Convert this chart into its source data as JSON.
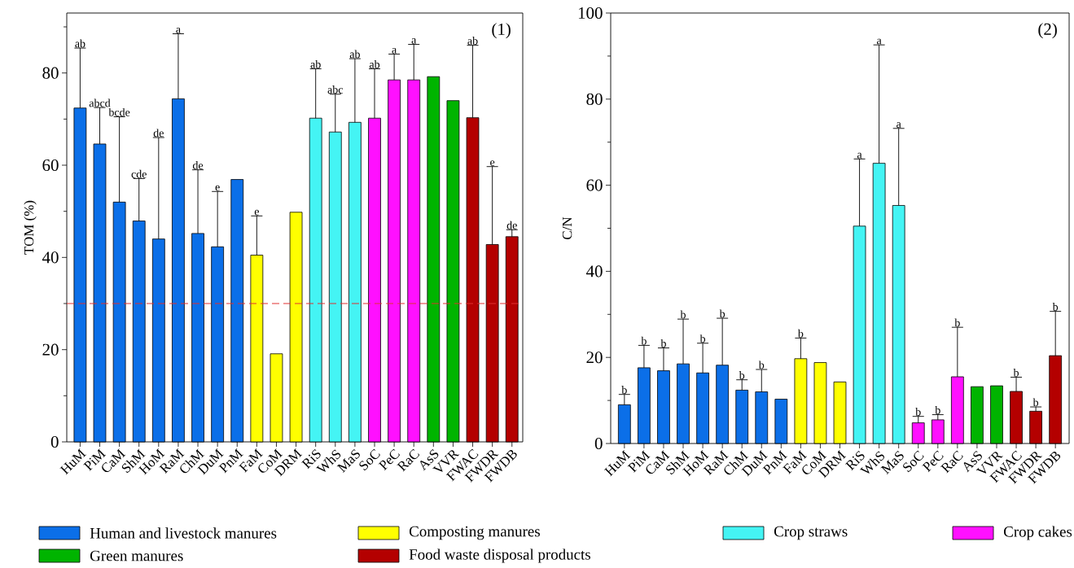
{
  "chart_data": [
    {
      "type": "bar",
      "ylabel": "TOM (%)",
      "categories": [
        "HuM",
        "PiM",
        "CaM",
        "ShM",
        "HoM",
        "RaM",
        "ChM",
        "DuM",
        "PnM",
        "FaM",
        "CoM",
        "DRM",
        "RiS",
        "WhS",
        "MaS",
        "SoC",
        "PeC",
        "RaC",
        "AsS",
        "VVR",
        "FWAC",
        "FWDR",
        "FWDB"
      ],
      "ylim": [
        0,
        93
      ],
      "yticks": [
        0,
        {
          "value": 10,
          "label": null
        },
        20,
        {
          "value": 30,
          "label": null
        },
        40,
        {
          "value": 50,
          "label": null
        },
        60,
        {
          "value": 70,
          "label": null
        },
        80,
        {
          "value": 90,
          "label": null
        }
      ],
      "legend": "bottom",
      "series": [
        {
          "name": "Human and livestock manures",
          "color": "#0b6fe8",
          "values": [
            72.4,
            64.6,
            52.0,
            47.9,
            44.0,
            74.4,
            45.2,
            42.3,
            56.9,
            null,
            null,
            null,
            null,
            null,
            null,
            null,
            null,
            null,
            null,
            null,
            null,
            null,
            null
          ],
          "errors": [
            [
              72.4,
              85.4
            ],
            [
              64.6,
              72.5
            ],
            [
              52.0,
              70.5
            ],
            [
              47.9,
              57.1
            ],
            [
              44.0,
              66.0
            ],
            [
              74.4,
              88.5
            ],
            [
              45.2,
              59.0
            ],
            [
              42.3,
              54.3
            ],
            null,
            null,
            null,
            null,
            null,
            null,
            null,
            null,
            null,
            null,
            null,
            null,
            null,
            null,
            null
          ]
        },
        {
          "name": "Composting manures",
          "color": "#ffff00",
          "values": [
            null,
            null,
            null,
            null,
            null,
            null,
            null,
            null,
            null,
            40.5,
            19.1,
            49.8,
            null,
            null,
            null,
            null,
            null,
            null,
            null,
            null,
            null,
            null,
            null
          ],
          "errors": [
            null,
            null,
            null,
            null,
            null,
            null,
            null,
            null,
            null,
            [
              40.5,
              49.0
            ],
            null,
            null,
            null,
            null,
            null,
            null,
            null,
            null,
            null,
            null,
            null,
            null,
            null
          ]
        },
        {
          "name": "Crop straws",
          "color": "#44f4f4",
          "values": [
            null,
            null,
            null,
            null,
            null,
            null,
            null,
            null,
            null,
            null,
            null,
            null,
            70.2,
            67.2,
            69.3,
            null,
            null,
            null,
            null,
            null,
            null,
            null,
            null
          ],
          "errors": [
            null,
            null,
            null,
            null,
            null,
            null,
            null,
            null,
            null,
            null,
            null,
            null,
            [
              70.2,
              80.9
            ],
            [
              67.2,
              75.4
            ],
            [
              69.3,
              83.1
            ],
            null,
            null,
            null,
            null,
            null,
            null,
            null,
            null
          ]
        },
        {
          "name": "Crop cakes",
          "color": "#ff10ff",
          "values": [
            null,
            null,
            null,
            null,
            null,
            null,
            null,
            null,
            null,
            null,
            null,
            null,
            null,
            null,
            null,
            70.2,
            78.5,
            78.5,
            null,
            null,
            null,
            null,
            null
          ],
          "errors": [
            null,
            null,
            null,
            null,
            null,
            null,
            null,
            null,
            null,
            null,
            null,
            null,
            null,
            null,
            null,
            [
              70.2,
              80.9
            ],
            [
              78.5,
              84.1
            ],
            [
              78.5,
              86.2
            ],
            null,
            null,
            null,
            null,
            null
          ]
        },
        {
          "name": "Green manures",
          "color": "#00b400",
          "values": [
            null,
            null,
            null,
            null,
            null,
            null,
            null,
            null,
            null,
            null,
            null,
            null,
            null,
            null,
            null,
            null,
            null,
            null,
            79.2,
            74.0,
            null,
            null,
            null
          ]
        },
        {
          "name": "Food waste disposal products",
          "color": "#b40000",
          "values": [
            null,
            null,
            null,
            null,
            null,
            null,
            null,
            null,
            null,
            null,
            null,
            null,
            null,
            null,
            null,
            null,
            null,
            null,
            null,
            null,
            70.3,
            42.8,
            44.5
          ],
          "errors": [
            null,
            null,
            null,
            null,
            null,
            null,
            null,
            null,
            null,
            null,
            null,
            null,
            null,
            null,
            null,
            null,
            null,
            null,
            null,
            null,
            [
              70.3,
              86.0
            ],
            [
              42.8,
              59.7
            ],
            [
              44.5,
              46.0
            ]
          ]
        }
      ],
      "ref_lines": [
        {
          "axis": "y",
          "value": 30,
          "color": "#e03030",
          "line_style": "dashed"
        }
      ],
      "annotations": [
        "(1)",
        {
          "text": "ab",
          "x": "HuM",
          "y": 85.4
        },
        {
          "text": "abcd",
          "x": "PiM",
          "y": 72.5
        },
        {
          "text": "bcde",
          "x": "CaM",
          "y": 70.5
        },
        {
          "text": "cde",
          "x": "ShM",
          "y": 57.1
        },
        {
          "text": "de",
          "x": "HoM",
          "y": 66.0
        },
        {
          "text": "a",
          "x": "RaM",
          "y": 88.5
        },
        {
          "text": "de",
          "x": "ChM",
          "y": 59.0
        },
        {
          "text": "e",
          "x": "DuM",
          "y": 54.3
        },
        {
          "text": "e",
          "x": "FaM",
          "y": 49.0
        },
        {
          "text": "ab",
          "x": "RiS",
          "y": 80.9
        },
        {
          "text": "abc",
          "x": "WhS",
          "y": 75.4
        },
        {
          "text": "ab",
          "x": "MaS",
          "y": 83.1
        },
        {
          "text": "ab",
          "x": "SoC",
          "y": 80.9
        },
        {
          "text": "a",
          "x": "PeC",
          "y": 84.1
        },
        {
          "text": "a",
          "x": "RaC",
          "y": 86.2
        },
        {
          "text": "ab",
          "x": "FWAC",
          "y": 86.0
        },
        {
          "text": "e",
          "x": "FWDR",
          "y": 59.7
        },
        {
          "text": "de",
          "x": "FWDB",
          "y": 46.0
        }
      ]
    },
    {
      "type": "bar",
      "ylabel": "C/N",
      "categories": [
        "HuM",
        "PiM",
        "CaM",
        "ShM",
        "HoM",
        "RaM",
        "ChM",
        "DuM",
        "PnM",
        "FaM",
        "CoM",
        "DRM",
        "RiS",
        "WhS",
        "MaS",
        "SoC",
        "PeC",
        "RaC",
        "AsS",
        "VVR",
        "FWAC",
        "FWDR",
        "FWDB"
      ],
      "ylim": [
        0,
        100
      ],
      "yticks": [
        0,
        {
          "value": 10,
          "label": null
        },
        20,
        {
          "value": 30,
          "label": null
        },
        40,
        {
          "value": 50,
          "label": null
        },
        60,
        {
          "value": 70,
          "label": null
        },
        80,
        {
          "value": 90,
          "label": null
        },
        100
      ],
      "series": [
        {
          "color": "#0b6fe8",
          "values": [
            9.0,
            17.6,
            16.9,
            18.5,
            16.4,
            18.2,
            12.4,
            12.0,
            10.3,
            null,
            null,
            null,
            null,
            null,
            null,
            null,
            null,
            null,
            null,
            null,
            null,
            null,
            null
          ],
          "errors": [
            [
              9.0,
              11.4
            ],
            [
              17.6,
              22.8
            ],
            [
              16.9,
              22.2
            ],
            [
              18.5,
              28.9
            ],
            [
              16.4,
              23.3
            ],
            [
              18.2,
              29.1
            ],
            [
              12.4,
              14.8
            ],
            [
              12.0,
              17.2
            ],
            null,
            null,
            null,
            null,
            null,
            null,
            null,
            null,
            null,
            null,
            null,
            null,
            null,
            null,
            null
          ]
        },
        {
          "color": "#ffff00",
          "values": [
            null,
            null,
            null,
            null,
            null,
            null,
            null,
            null,
            null,
            19.7,
            18.8,
            14.3,
            null,
            null,
            null,
            null,
            null,
            null,
            null,
            null,
            null,
            null,
            null
          ],
          "errors": [
            null,
            null,
            null,
            null,
            null,
            null,
            null,
            null,
            null,
            [
              19.7,
              24.5
            ],
            null,
            null,
            null,
            null,
            null,
            null,
            null,
            null,
            null,
            null,
            null,
            null,
            null
          ]
        },
        {
          "color": "#44f4f4",
          "values": [
            null,
            null,
            null,
            null,
            null,
            null,
            null,
            null,
            null,
            null,
            null,
            null,
            50.5,
            65.1,
            55.3,
            null,
            null,
            null,
            null,
            null,
            null,
            null,
            null
          ],
          "errors": [
            null,
            null,
            null,
            null,
            null,
            null,
            null,
            null,
            null,
            null,
            null,
            null,
            [
              50.5,
              66.1
            ],
            [
              65.1,
              92.6
            ],
            [
              55.3,
              73.2
            ],
            null,
            null,
            null,
            null,
            null,
            null,
            null,
            null
          ]
        },
        {
          "color": "#ff10ff",
          "values": [
            null,
            null,
            null,
            null,
            null,
            null,
            null,
            null,
            null,
            null,
            null,
            null,
            null,
            null,
            null,
            4.8,
            5.5,
            15.5,
            null,
            null,
            null,
            null,
            null
          ],
          "errors": [
            null,
            null,
            null,
            null,
            null,
            null,
            null,
            null,
            null,
            null,
            null,
            null,
            null,
            null,
            null,
            [
              4.8,
              6.3
            ],
            [
              5.5,
              6.7
            ],
            [
              15.5,
              27.0
            ],
            null,
            null,
            null,
            null,
            null
          ]
        },
        {
          "color": "#00b400",
          "values": [
            null,
            null,
            null,
            null,
            null,
            null,
            null,
            null,
            null,
            null,
            null,
            null,
            null,
            null,
            null,
            null,
            null,
            null,
            13.2,
            13.4,
            null,
            null,
            null
          ]
        },
        {
          "color": "#b40000",
          "values": [
            null,
            null,
            null,
            null,
            null,
            null,
            null,
            null,
            null,
            null,
            null,
            null,
            null,
            null,
            null,
            null,
            null,
            null,
            null,
            null,
            12.1,
            7.5,
            20.4
          ],
          "errors": [
            null,
            null,
            null,
            null,
            null,
            null,
            null,
            null,
            null,
            null,
            null,
            null,
            null,
            null,
            null,
            null,
            null,
            null,
            null,
            null,
            [
              12.1,
              15.4
            ],
            [
              7.5,
              8.5
            ],
            [
              20.4,
              30.7
            ]
          ]
        }
      ],
      "annotations": [
        "(2)",
        {
          "text": "b",
          "x": "HuM",
          "y": 11.4
        },
        {
          "text": "b",
          "x": "PiM",
          "y": 22.8
        },
        {
          "text": "b",
          "x": "CaM",
          "y": 22.2
        },
        {
          "text": "b",
          "x": "ShM",
          "y": 28.9
        },
        {
          "text": "b",
          "x": "HoM",
          "y": 23.3
        },
        {
          "text": "b",
          "x": "RaM",
          "y": 29.1
        },
        {
          "text": "b",
          "x": "ChM",
          "y": 14.8
        },
        {
          "text": "b",
          "x": "DuM",
          "y": 17.2
        },
        {
          "text": "b",
          "x": "FaM",
          "y": 24.5
        },
        {
          "text": "a",
          "x": "RiS",
          "y": 66.1
        },
        {
          "text": "a",
          "x": "WhS",
          "y": 92.6
        },
        {
          "text": "a",
          "x": "MaS",
          "y": 73.2
        },
        {
          "text": "b",
          "x": "SoC",
          "y": 6.3
        },
        {
          "text": "b",
          "x": "PeC",
          "y": 6.7
        },
        {
          "text": "b",
          "x": "RaC",
          "y": 27.0
        },
        {
          "text": "b",
          "x": "FWAC",
          "y": 15.4
        },
        {
          "text": "b",
          "x": "FWDR",
          "y": 8.5
        },
        {
          "text": "b",
          "x": "FWDB",
          "y": 30.7
        }
      ]
    }
  ]
}
